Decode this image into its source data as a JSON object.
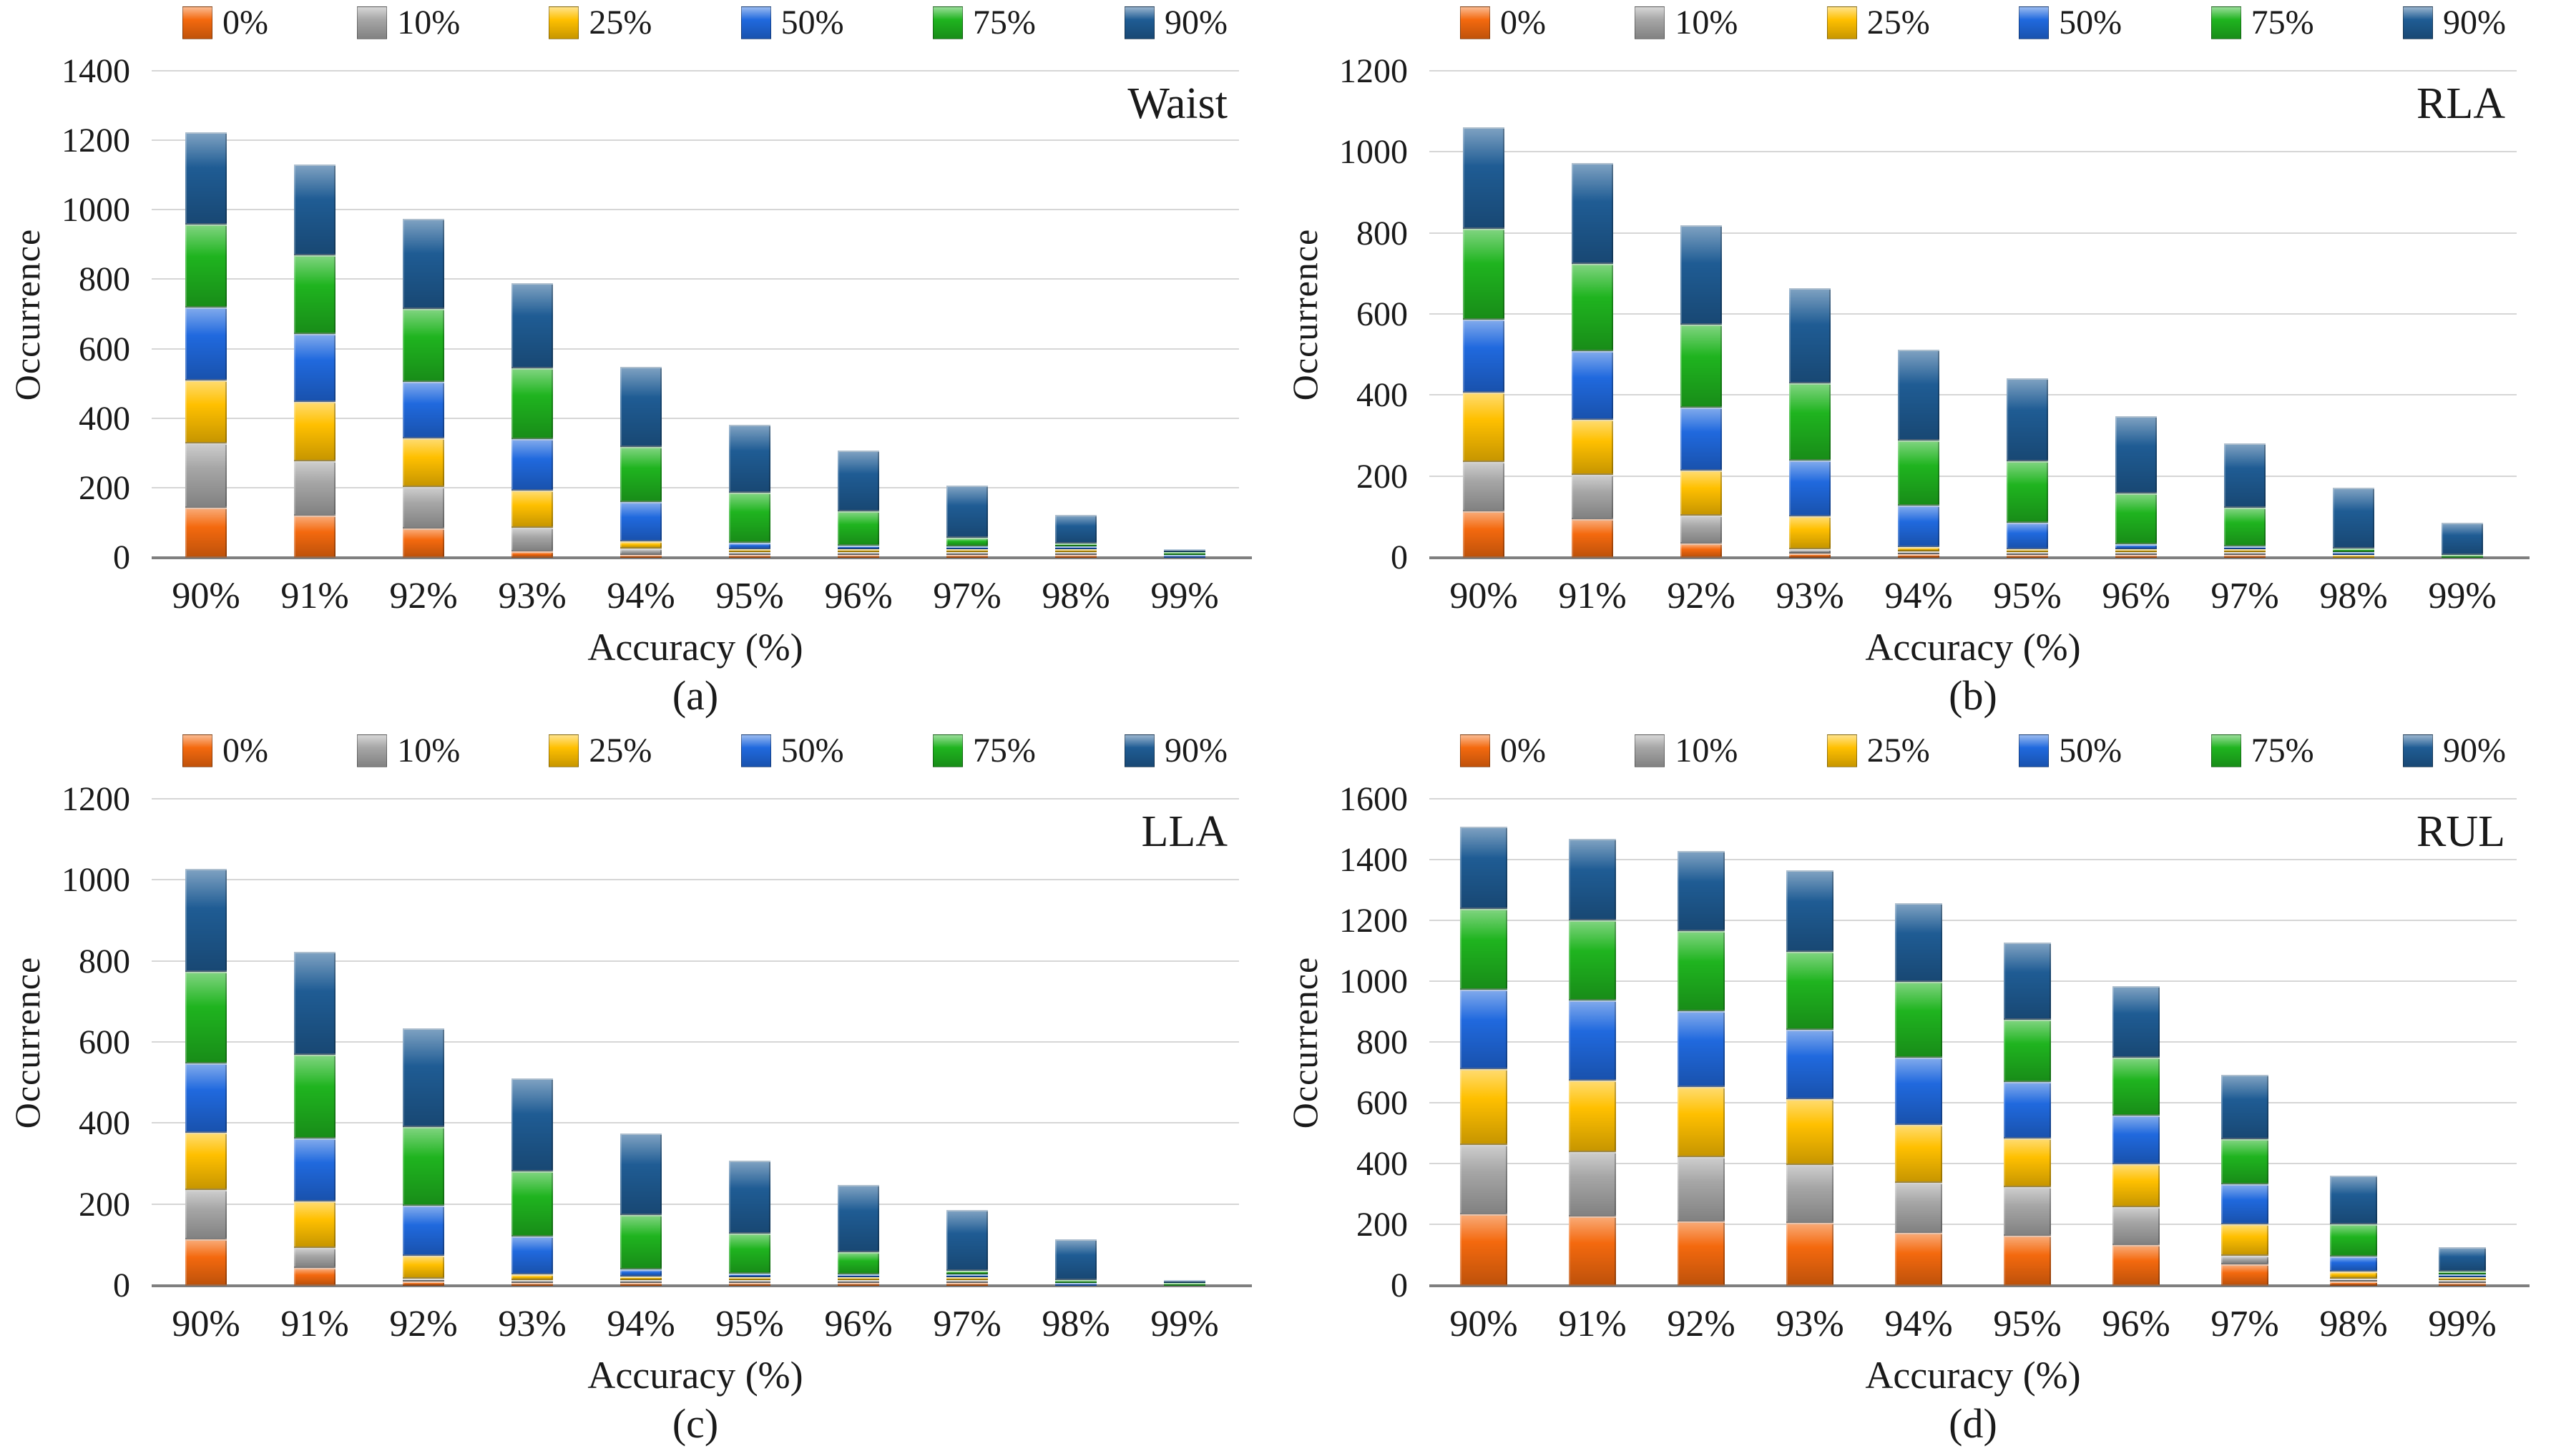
{
  "figure": {
    "xlabel": "Accuracy (%)",
    "ylabel": "Occurrence",
    "categories": [
      "90%",
      "91%",
      "92%",
      "93%",
      "94%",
      "95%",
      "96%",
      "97%",
      "98%",
      "99%"
    ],
    "legend_labels": [
      "0%",
      "10%",
      "25%",
      "50%",
      "75%",
      "90%"
    ],
    "colors": {
      "p0": "#F4690E",
      "p10": "#A6A6A6",
      "p25": "#FFC000",
      "p50": "#2069DE",
      "p75": "#1FB41F",
      "p90": "#1F5C94",
      "gridline": "#D6D6D6",
      "baseline": "#7F7F7F"
    }
  },
  "chart_data": [
    {
      "type": "bar",
      "stacked": true,
      "title": "Waist",
      "caption": "(a)",
      "xlabel": "Accuracy (%)",
      "ylabel": "Occurrence",
      "ylim": [
        0,
        1400
      ],
      "ytick_step": 200,
      "grid": true,
      "legend_position": "top",
      "categories": [
        "90%",
        "91%",
        "92%",
        "93%",
        "94%",
        "95%",
        "96%",
        "97%",
        "98%",
        "99%"
      ],
      "series": [
        {
          "name": "0%",
          "color": "#F4690E",
          "values": [
            145,
            122,
            85,
            18,
            8,
            6,
            4,
            2,
            1,
            0
          ]
        },
        {
          "name": "10%",
          "color": "#A6A6A6",
          "values": [
            185,
            155,
            118,
            68,
            18,
            5,
            4,
            2,
            1,
            0
          ]
        },
        {
          "name": "25%",
          "color": "#FFC000",
          "values": [
            180,
            172,
            140,
            108,
            22,
            6,
            5,
            2,
            1,
            0
          ]
        },
        {
          "name": "50%",
          "color": "#2069DE",
          "values": [
            210,
            196,
            163,
            148,
            112,
            18,
            10,
            4,
            2,
            1
          ]
        },
        {
          "name": "75%",
          "color": "#1FB41F",
          "values": [
            240,
            225,
            210,
            203,
            160,
            145,
            100,
            25,
            3,
            1
          ]
        },
        {
          "name": "90%",
          "color": "#1F5C94",
          "values": [
            265,
            262,
            260,
            245,
            230,
            195,
            175,
            150,
            82,
            5
          ]
        }
      ]
    },
    {
      "type": "bar",
      "stacked": true,
      "title": "RLA",
      "caption": "(b)",
      "xlabel": "Accuracy (%)",
      "ylabel": "Occurrence",
      "ylim": [
        0,
        1200
      ],
      "ytick_step": 200,
      "grid": true,
      "legend_position": "top",
      "categories": [
        "90%",
        "91%",
        "92%",
        "93%",
        "94%",
        "95%",
        "96%",
        "97%",
        "98%",
        "99%"
      ],
      "series": [
        {
          "name": "0%",
          "color": "#F4690E",
          "values": [
            115,
            95,
            35,
            10,
            8,
            5,
            2,
            1,
            0,
            0
          ]
        },
        {
          "name": "10%",
          "color": "#A6A6A6",
          "values": [
            122,
            110,
            70,
            12,
            3,
            2,
            2,
            1,
            0,
            0
          ]
        },
        {
          "name": "25%",
          "color": "#FFC000",
          "values": [
            170,
            135,
            110,
            80,
            12,
            5,
            3,
            1,
            1,
            0
          ]
        },
        {
          "name": "50%",
          "color": "#2069DE",
          "values": [
            180,
            170,
            155,
            138,
            102,
            65,
            13,
            2,
            1,
            0
          ]
        },
        {
          "name": "75%",
          "color": "#1FB41F",
          "values": [
            225,
            215,
            205,
            190,
            160,
            152,
            125,
            95,
            8,
            1
          ]
        },
        {
          "name": "90%",
          "color": "#1F5C94",
          "values": [
            250,
            250,
            245,
            235,
            225,
            205,
            190,
            160,
            150,
            79
          ]
        }
      ]
    },
    {
      "type": "bar",
      "stacked": true,
      "title": "LLA",
      "caption": "(c)",
      "xlabel": "Accuracy (%)",
      "ylabel": "Occurrence",
      "ylim": [
        0,
        1200
      ],
      "ytick_step": 200,
      "grid": true,
      "legend_position": "top",
      "categories": [
        "90%",
        "91%",
        "92%",
        "93%",
        "94%",
        "95%",
        "96%",
        "97%",
        "98%",
        "99%"
      ],
      "series": [
        {
          "name": "0%",
          "color": "#F4690E",
          "values": [
            115,
            45,
            10,
            5,
            5,
            2,
            1,
            1,
            0,
            0
          ]
        },
        {
          "name": "10%",
          "color": "#A6A6A6",
          "values": [
            122,
            48,
            8,
            3,
            3,
            2,
            1,
            1,
            0,
            0
          ]
        },
        {
          "name": "25%",
          "color": "#FFC000",
          "values": [
            140,
            115,
            57,
            15,
            8,
            3,
            2,
            1,
            0,
            0
          ]
        },
        {
          "name": "50%",
          "color": "#2069DE",
          "values": [
            172,
            155,
            122,
            93,
            18,
            8,
            3,
            2,
            1,
            0
          ]
        },
        {
          "name": "75%",
          "color": "#1FB41F",
          "values": [
            225,
            207,
            195,
            160,
            135,
            100,
            55,
            8,
            2,
            1
          ]
        },
        {
          "name": "90%",
          "color": "#1F5C94",
          "values": [
            255,
            255,
            243,
            230,
            200,
            180,
            165,
            150,
            100,
            5
          ]
        }
      ]
    },
    {
      "type": "bar",
      "stacked": true,
      "title": "RUL",
      "caption": "(d)",
      "xlabel": "Accuracy (%)",
      "ylabel": "Occurrence",
      "ylim": [
        0,
        1600
      ],
      "ytick_step": 200,
      "grid": true,
      "legend_position": "top",
      "categories": [
        "90%",
        "91%",
        "92%",
        "93%",
        "94%",
        "95%",
        "96%",
        "97%",
        "98%",
        "99%"
      ],
      "series": [
        {
          "name": "0%",
          "color": "#F4690E",
          "values": [
            235,
            228,
            212,
            208,
            174,
            165,
            135,
            70,
            15,
            2
          ]
        },
        {
          "name": "10%",
          "color": "#A6A6A6",
          "values": [
            228,
            213,
            212,
            190,
            165,
            160,
            125,
            28,
            5,
            1
          ]
        },
        {
          "name": "25%",
          "color": "#FFC000",
          "values": [
            250,
            235,
            230,
            215,
            190,
            160,
            140,
            105,
            22,
            2
          ]
        },
        {
          "name": "50%",
          "color": "#2069DE",
          "values": [
            262,
            262,
            250,
            230,
            222,
            185,
            160,
            130,
            50,
            5
          ]
        },
        {
          "name": "75%",
          "color": "#1FB41F",
          "values": [
            265,
            265,
            262,
            255,
            248,
            205,
            190,
            150,
            105,
            10
          ]
        },
        {
          "name": "90%",
          "color": "#1F5C94",
          "values": [
            270,
            267,
            265,
            270,
            260,
            255,
            235,
            210,
            160,
            80
          ]
        }
      ]
    }
  ]
}
